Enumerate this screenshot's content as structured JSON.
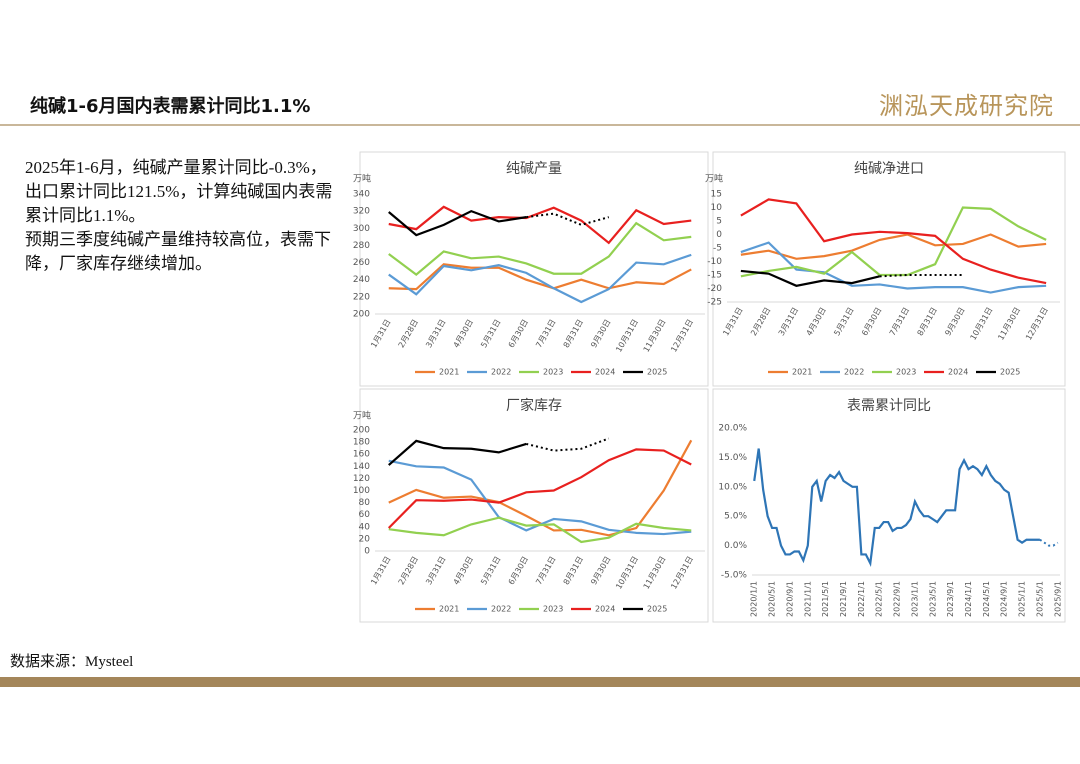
{
  "header": {
    "title": "纯碱1-6月国内表需累计同比1.1%",
    "logo": "渊泓天成研究院"
  },
  "body": [
    "2025年1-6月，纯碱产量累计同比-0.3%，出口累计同比121.5%，计算纯碱国内表需累计同比1.1%。",
    "预期三季度纯碱产量维持较高位，表需下降，厂家库存继续增加。"
  ],
  "source": "数据来源：Mysteel",
  "chart_data": [
    {
      "type": "line",
      "title": "纯碱产量",
      "y_unit": "万吨",
      "categories": [
        "1月31日",
        "2月28日",
        "3月31日",
        "4月30日",
        "5月31日",
        "6月30日",
        "7月31日",
        "8月31日",
        "9月30日",
        "10月31日",
        "11月30日",
        "12月31日"
      ],
      "ylim": [
        200,
        340
      ],
      "yticks": [
        200,
        220,
        240,
        260,
        280,
        300,
        320,
        340
      ],
      "grid": false,
      "series": [
        {
          "name": "2021",
          "color": "#ed7d31",
          "values": [
            230,
            229,
            258,
            254,
            254,
            240,
            230,
            240,
            230,
            237,
            235,
            252
          ]
        },
        {
          "name": "2022",
          "color": "#5b9bd5",
          "values": [
            246,
            223,
            256,
            251,
            257,
            248,
            230,
            214,
            229,
            260,
            258,
            269
          ]
        },
        {
          "name": "2023",
          "color": "#92d050",
          "values": [
            270,
            246,
            273,
            265,
            267,
            259,
            247,
            247,
            267,
            306,
            286,
            290
          ]
        },
        {
          "name": "2024",
          "color": "#e8201f",
          "values": [
            305,
            299,
            325,
            309,
            313,
            312,
            324,
            309,
            283,
            321,
            305,
            309
          ]
        },
        {
          "name": "2025",
          "color": "#000000",
          "dotted_from": 5,
          "values": [
            319,
            292,
            304,
            320,
            308,
            313,
            317,
            304,
            313,
            null,
            null,
            null
          ]
        }
      ]
    },
    {
      "type": "line",
      "title": "纯碱净进口",
      "y_unit": "万吨",
      "categories": [
        "1月31日",
        "2月28日",
        "3月31日",
        "4月30日",
        "5月31日",
        "6月30日",
        "7月31日",
        "8月31日",
        "9月30日",
        "10月31日",
        "11月30日",
        "12月31日"
      ],
      "ylim": [
        -25,
        15
      ],
      "yticks": [
        -25,
        -20,
        -15,
        -10,
        -5,
        0,
        5,
        10,
        15
      ],
      "grid": false,
      "series": [
        {
          "name": "2021",
          "color": "#ed7d31",
          "values": [
            -7.5,
            -6,
            -9,
            -8,
            -6,
            -2,
            0,
            -4,
            -3.5,
            0,
            -4.5,
            -3.5
          ]
        },
        {
          "name": "2022",
          "color": "#5b9bd5",
          "values": [
            -6.5,
            -3,
            -13,
            -14,
            -19,
            -18.5,
            -20,
            -19.5,
            -19.5,
            -21.5,
            -19.5,
            -19
          ]
        },
        {
          "name": "2023",
          "color": "#92d050",
          "values": [
            -15.5,
            -13.5,
            -12,
            -14.5,
            -6.5,
            -15,
            -15,
            -11,
            10,
            9.5,
            3,
            -2
          ]
        },
        {
          "name": "2024",
          "color": "#e8201f",
          "values": [
            7,
            13,
            11.5,
            -2.5,
            0,
            1,
            0.5,
            -0.5,
            -9,
            -13,
            -16,
            -18
          ]
        },
        {
          "name": "2025",
          "color": "#000000",
          "dotted_from": 5,
          "values": [
            -13.5,
            -14.5,
            -19,
            -17,
            -18,
            -15.5,
            -15,
            -15,
            -15,
            null,
            null,
            null
          ]
        }
      ]
    },
    {
      "type": "line",
      "title": "厂家库存",
      "y_unit": "万吨",
      "categories": [
        "1月31日",
        "2月28日",
        "3月31日",
        "4月30日",
        "5月31日",
        "6月30日",
        "7月31日",
        "8月31日",
        "9月30日",
        "10月31日",
        "11月30日",
        "12月31日"
      ],
      "ylim": [
        0,
        200
      ],
      "yticks": [
        0,
        20,
        40,
        60,
        80,
        100,
        120,
        140,
        160,
        180,
        200
      ],
      "grid": false,
      "series": [
        {
          "name": "2021",
          "color": "#ed7d31",
          "values": [
            80,
            101,
            88,
            90,
            81,
            58,
            34,
            35,
            26,
            38,
            100,
            183
          ]
        },
        {
          "name": "2022",
          "color": "#5b9bd5",
          "values": [
            149,
            140,
            138,
            118,
            56,
            34,
            53,
            49,
            35,
            30,
            28,
            32
          ]
        },
        {
          "name": "2023",
          "color": "#92d050",
          "values": [
            36,
            30,
            26,
            44,
            55,
            42,
            44,
            15,
            22,
            45,
            38,
            34
          ]
        },
        {
          "name": "2024",
          "color": "#e8201f",
          "values": [
            38,
            84,
            83,
            85,
            80,
            97,
            100,
            122,
            150,
            168,
            166,
            143
          ]
        },
        {
          "name": "2025",
          "color": "#000000",
          "dotted_from": 5,
          "values": [
            142,
            182,
            170,
            169,
            163,
            177,
            166,
            169,
            186,
            null,
            null,
            null
          ]
        }
      ]
    },
    {
      "type": "line",
      "title": "表需累计同比",
      "categories": [
        "2020/1/1",
        null,
        null,
        null,
        "2020/5/1",
        null,
        null,
        null,
        "2020/9/1",
        null,
        null,
        null,
        "2021/1/1",
        null,
        null,
        null,
        "2021/5/1",
        null,
        null,
        null,
        "2021/9/1",
        null,
        null,
        null,
        "2022/1/1",
        null,
        null,
        null,
        "2022/5/1",
        null,
        null,
        null,
        "2022/9/1",
        null,
        null,
        null,
        "2023/1/1",
        null,
        null,
        null,
        "2023/5/1",
        null,
        null,
        null,
        "2023/9/1",
        null,
        null,
        null,
        "2024/1/1",
        null,
        null,
        null,
        "2024/5/1",
        null,
        null,
        null,
        "2024/9/1",
        null,
        null,
        null,
        "2025/1/1",
        null,
        null,
        null,
        "2025/5/1",
        null,
        null,
        null,
        "2025/9/1"
      ],
      "ylim": [
        -5,
        20
      ],
      "yticks": [
        {
          "value": -5,
          "label": "-5.0%"
        },
        {
          "value": 0,
          "label": "0.0%"
        },
        {
          "value": 5,
          "label": "5.0%"
        },
        {
          "value": 10,
          "label": "10.0%"
        },
        {
          "value": 15,
          "label": "15.0%"
        },
        {
          "value": 20,
          "label": "20.0%"
        }
      ],
      "grid": false,
      "color": "#2e75b6",
      "dotted_from": 64,
      "values": [
        11,
        16.5,
        9.5,
        5,
        3,
        3,
        0,
        -1.5,
        -1.5,
        -1,
        -1,
        -2.5,
        0,
        10,
        11,
        7.5,
        11,
        12,
        11.5,
        12.5,
        11,
        10.5,
        10,
        10,
        -1.5,
        -1.5,
        -3,
        3,
        3,
        4,
        4,
        2.5,
        3,
        3,
        3.5,
        4.5,
        7.5,
        6,
        5,
        5,
        4.5,
        4,
        5,
        6,
        6,
        6,
        13,
        14.5,
        13,
        13.5,
        13,
        12,
        13.5,
        12,
        11,
        10.5,
        9.5,
        9,
        5,
        1,
        0.5,
        1,
        1,
        1,
        1,
        0.5,
        0,
        0,
        0.5
      ]
    }
  ]
}
